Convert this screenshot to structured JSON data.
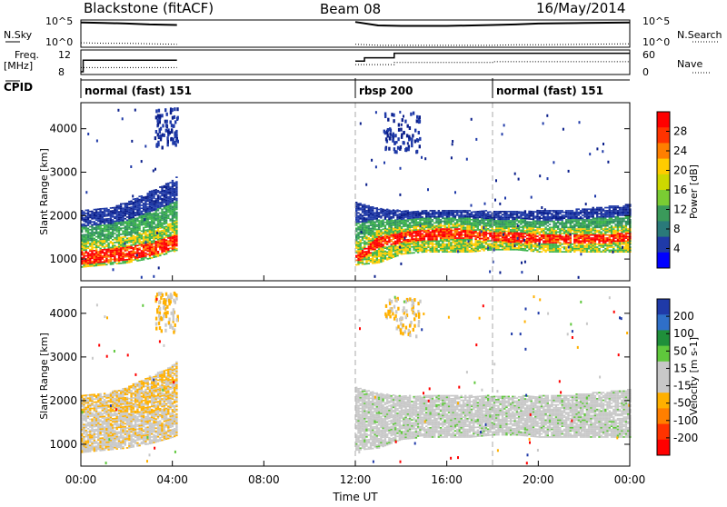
{
  "chart_data": [
    {
      "type": "line",
      "panel": "noise",
      "title": "Blackstone (fitACF)",
      "beam": "Beam 08",
      "date": "16/May/2014",
      "left_label": "N.Sky",
      "right_label": "N.Search",
      "left_ticks": [
        "10^5",
        "10^0"
      ],
      "right_ticks": [
        "10^5",
        "10^0"
      ],
      "x_hours": [
        0,
        0.1,
        1,
        2,
        3,
        4.2,
        12,
        13,
        14,
        16,
        18,
        19,
        20,
        22,
        24
      ],
      "n_sky": [
        5.0,
        5.0,
        4.9,
        4.8,
        4.6,
        4.5,
        5.1,
        4.4,
        4.3,
        4.3,
        4.5,
        4.6,
        4.8,
        4.9,
        5.0
      ],
      "n_search": [
        0.9,
        0.9,
        0.8,
        0.8,
        0.7,
        0.6,
        0.6,
        0.4,
        0.4,
        0.4,
        0.4,
        0.5,
        0.5,
        0.6,
        0.7
      ],
      "n_sky_ylim": [
        0,
        5.5
      ]
    },
    {
      "type": "line",
      "panel": "frequency",
      "left_label": "Freq.",
      "left_unit": "[MHz]",
      "right_label": "Nave",
      "left_ticks": [
        "12",
        "8"
      ],
      "right_ticks": [
        "60",
        "0"
      ],
      "freq_segments": [
        {
          "x": [
            0,
            0.1,
            0.1,
            4.2
          ],
          "y": [
            8,
            8,
            10.5,
            10.5
          ]
        },
        {
          "x": [
            12,
            12.4,
            12.4,
            13.7,
            13.7,
            24
          ],
          "y": [
            10.3,
            10.3,
            11.0,
            11.0,
            12.0,
            12.0
          ]
        }
      ],
      "nave_segments": [
        {
          "x": [
            0,
            4.2
          ],
          "y": [
            14,
            14
          ]
        },
        {
          "x": [
            12,
            13.7,
            13.7,
            18,
            18,
            24
          ],
          "y": [
            22,
            22,
            28,
            28,
            30,
            30
          ]
        }
      ],
      "freq_ylim": [
        7.4,
        12.7
      ],
      "nave_ylim": [
        -5,
        62
      ]
    },
    {
      "type": "table",
      "panel": "cpid",
      "label": "CPID",
      "segments": [
        {
          "start_hour": 0,
          "name": "normal (fast) 151"
        },
        {
          "start_hour": 12,
          "name": "rbsp 200"
        },
        {
          "start_hour": 18,
          "name": "normal (fast) 151"
        }
      ]
    },
    {
      "type": "heatmap",
      "panel": "power",
      "ylabel": "Slant Range [km]",
      "yticks": [
        1000,
        2000,
        3000,
        4000
      ],
      "ylim": [
        500,
        4600
      ],
      "xlim": [
        0,
        24
      ],
      "colorbar": {
        "label": "Power [dB]",
        "ticks": [
          "28",
          "24",
          "20",
          "16",
          "12",
          "8",
          "4"
        ]
      },
      "bands": [
        {
          "x": [
            0,
            1,
            2,
            3,
            4,
            4.2
          ],
          "lo": [
            800,
            850,
            900,
            1000,
            1150,
            1200
          ],
          "core_lo": [
            850,
            900,
            950,
            1050,
            1200,
            1250
          ],
          "core_hi": [
            1150,
            1200,
            1250,
            1350,
            1500,
            1550
          ],
          "hi": [
            2100,
            2150,
            2300,
            2550,
            2800,
            2900
          ]
        },
        {
          "x": [
            12,
            13,
            14,
            15,
            16,
            17,
            18,
            19,
            20,
            21,
            22,
            23,
            24
          ],
          "lo": [
            850,
            900,
            1100,
            1150,
            1150,
            1150,
            1200,
            1200,
            1150,
            1150,
            1150,
            1150,
            1150
          ],
          "core_lo": [
            900,
            1250,
            1350,
            1400,
            1450,
            1450,
            1400,
            1350,
            1350,
            1350,
            1350,
            1350,
            1400
          ],
          "core_hi": [
            1100,
            1500,
            1600,
            1650,
            1700,
            1650,
            1600,
            1600,
            1550,
            1550,
            1550,
            1550,
            1600
          ],
          "hi": [
            2300,
            2150,
            2100,
            2100,
            2100,
            2100,
            2100,
            2100,
            2100,
            2100,
            2150,
            2200,
            2250
          ]
        }
      ],
      "patches": [
        {
          "x": [
            3.2,
            4.2
          ],
          "range": [
            3600,
            4500
          ]
        },
        {
          "x": [
            13.2,
            14.8
          ],
          "range": [
            3500,
            4400
          ]
        }
      ],
      "colors": {
        "red": "#ff0000",
        "orange": "#ff7f00",
        "yellow": "#ffcc00",
        "green": "#3cb44b",
        "teal": "#2f8f5f",
        "blue": "#1f3aa8",
        "navy": "#0a1e8a"
      }
    },
    {
      "type": "heatmap",
      "panel": "velocity",
      "ylabel": "Slant Range [km]",
      "yticks": [
        1000,
        2000,
        3000,
        4000
      ],
      "ylim": [
        500,
        4600
      ],
      "xlim": [
        0,
        24
      ],
      "xlabel": "Time UT",
      "xticks": [
        "00:00",
        "04:00",
        "08:00",
        "12:00",
        "16:00",
        "20:00",
        "00:00"
      ],
      "colorbar": {
        "label": "Velocity [m s-1]",
        "ticks": [
          "200",
          "100",
          "50",
          "15",
          "-15",
          "-50",
          "-100",
          "-200"
        ]
      },
      "colors": {
        "gray": "#c8c8c8",
        "orange": "#ffb000",
        "green": "#5fc83c",
        "blue": "#1f3aa8",
        "red": "#ff0000"
      }
    }
  ],
  "colorbar_power": [
    "#ff0000",
    "#ff3300",
    "#ff7f00",
    "#ffcc00",
    "#cdd800",
    "#7acc33",
    "#3a9a5a",
    "#2a7a7a",
    "#1f3aa8",
    "#0000ff"
  ],
  "colorbar_velocity": [
    "#1f3aa8",
    "#2f6fc8",
    "#1f8f3a",
    "#5fc83c",
    "#c8c8c8",
    "#c8c8c8",
    "#ffb000",
    "#ff7f00",
    "#ff3300",
    "#ff0000"
  ]
}
